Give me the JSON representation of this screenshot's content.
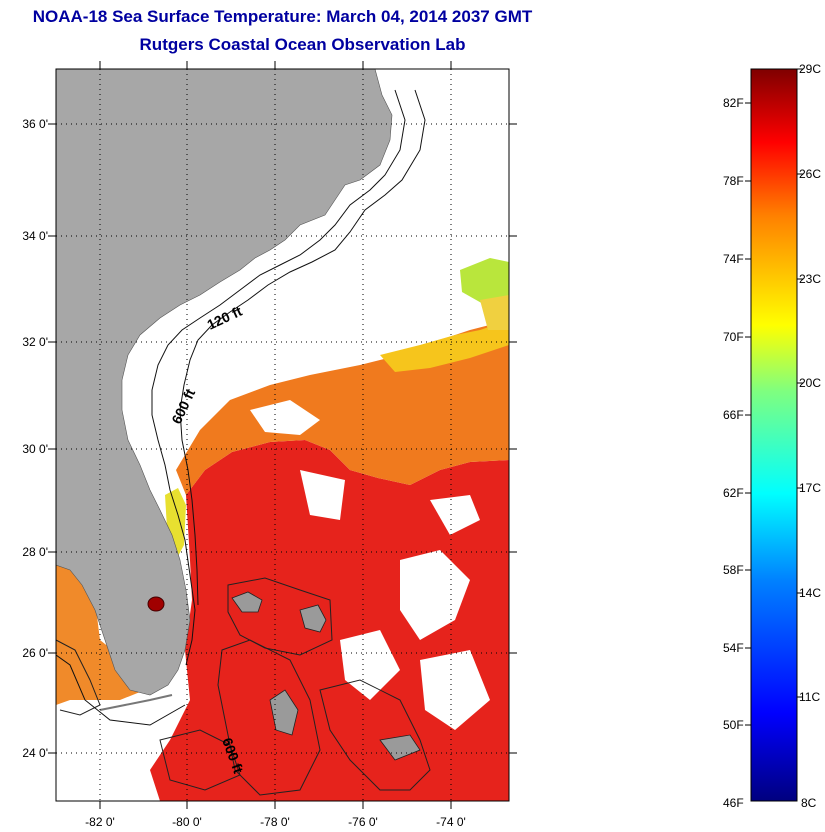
{
  "header": {
    "title": "NOAA-18 Sea Surface Temperature:  March 04, 2014 2037 GMT",
    "subtitle": "Rutgers Coastal Ocean Observation Lab"
  },
  "map": {
    "lat_ticks": [
      "36 0'",
      "34 0'",
      "32 0'",
      "30 0'",
      "28 0'",
      "26 0'",
      "24 0'"
    ],
    "lon_ticks": [
      "-82 0'",
      "-80 0'",
      "-78 0'",
      "-76 0'",
      "-74 0'"
    ],
    "contour_labels": {
      "shelf_120": "120 ft",
      "shelf_600": "600 ft",
      "bahamas_600": "600 ft"
    },
    "colors": {
      "land": "#a7a7a7",
      "ocean_cloud": "#ffffff",
      "warm_sst": "#e6231c",
      "moderate_sst": "#f07a1e",
      "cool_sst": "#f6c51c"
    }
  },
  "colorbar": {
    "fahrenheit": [
      "82F",
      "78F",
      "74F",
      "70F",
      "66F",
      "62F",
      "58F",
      "54F",
      "50F",
      "46F"
    ],
    "celsius": [
      "29C",
      "26C",
      "23C",
      "20C",
      "17C",
      "14C",
      "11C",
      "8C"
    ]
  }
}
